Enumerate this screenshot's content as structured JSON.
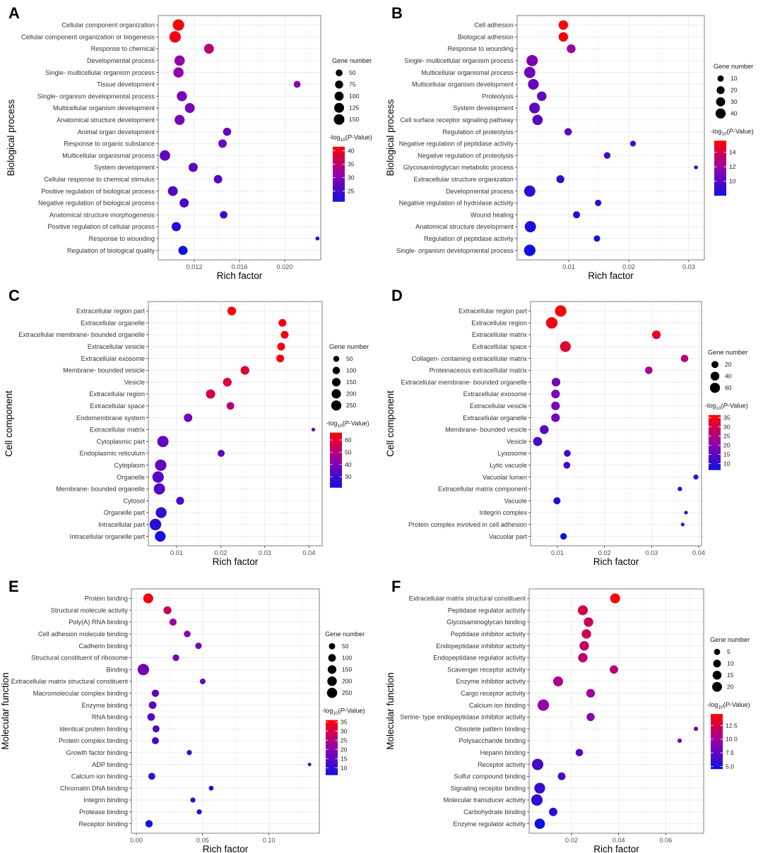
{
  "chart_data": [
    {
      "panel": "A",
      "type": "scatter",
      "subtype": "bubble",
      "xlabel": "Rich factor",
      "ylabel": "Biological process",
      "xlim": [
        0.00881,
        0.02319
      ],
      "xticks": [
        0.012,
        0.016,
        0.02
      ],
      "xtick_labels": [
        "0.012",
        "0.016",
        "0.020"
      ],
      "xminor": [
        0.01,
        0.014,
        0.018,
        0.022
      ],
      "grid": true,
      "size_legend": {
        "title": "Gene number",
        "values": [
          50,
          75,
          100,
          125,
          150
        ],
        "range": [
          25,
          155
        ]
      },
      "color_legend": {
        "title_prefix": "-log",
        "title_sub": "10",
        "title_suffix": "(P-Value)",
        "min": 21,
        "max": 41.5,
        "ticks": [
          25,
          30,
          35,
          40
        ]
      },
      "legend_position": "right",
      "categories": [
        "Cellular component organization",
        "Cellular component organization or biogenesis",
        "Response to chemical",
        "Developmental process",
        "Single- multicellular organism process",
        "Tissue development",
        "Single- organism developmental process",
        "Multicellular organism development",
        "Anatomical structure development",
        "Animal organ development",
        "Response to organic substance",
        "Multicellular organismal process",
        "System development",
        "Cellular response to chemical stimulus",
        "Positive regulation of biological process",
        "Negative regulation of biological process",
        "Anatomical structure morphogenesis",
        "Positive regulation of cellular process",
        "Response to wounding",
        "Regulation of biological quality"
      ],
      "rich_factor": [
        0.0106,
        0.0103,
        0.0133,
        0.0107,
        0.0106,
        0.0211,
        0.0109,
        0.0116,
        0.0107,
        0.0149,
        0.0145,
        0.0094,
        0.0119,
        0.0141,
        0.0101,
        0.0111,
        0.0146,
        0.0104,
        0.0229,
        0.011
      ],
      "gene_number": [
        150,
        150,
        110,
        120,
        120,
        55,
        115,
        110,
        115,
        75,
        80,
        125,
        95,
        80,
        110,
        95,
        65,
        95,
        28,
        95
      ],
      "neg_log10_p": [
        41,
        40,
        35,
        31,
        31,
        30,
        29,
        29,
        29,
        28,
        28,
        27,
        27,
        26,
        26,
        25,
        25,
        22,
        22,
        21
      ]
    },
    {
      "panel": "B",
      "type": "scatter",
      "subtype": "bubble",
      "xlabel": "Rich factor",
      "ylabel": "Biological process",
      "xlim": [
        0.0014,
        0.0326
      ],
      "xticks": [
        0.01,
        0.02,
        0.03
      ],
      "xtick_labels": [
        "0.01",
        "0.02",
        "0.03"
      ],
      "xminor": [
        0.005,
        0.015,
        0.025
      ],
      "grid": true,
      "size_legend": {
        "title": "Gene number",
        "values": [
          10,
          20,
          30,
          40
        ],
        "range": [
          4,
          48
        ]
      },
      "color_legend": {
        "title_prefix": "-log",
        "title_sub": "10",
        "title_suffix": "(P-Value)",
        "min": 8,
        "max": 15.6,
        "ticks": [
          10,
          12,
          14
        ]
      },
      "legend_position": "right",
      "categories": [
        "Cell adhesion",
        "Biological adhesion",
        "Response to wounding",
        "Single- multicellular organism process",
        "Multicellular organismal process",
        "Multicellular organism development",
        "Proteolysis",
        "System development",
        "Cell surface receptor signaling pathway",
        "Regulation of proteolysis",
        "Negative regulation of peptidase activity",
        "Negative regulation of proteolysis",
        "Glycosaminoglycan metabolic process",
        "Extracellular structure organization",
        "Developmental process",
        "Negative regulation of hydrolase activity",
        "Wound healing",
        "Anatomical structure development",
        "Regulation of peptidase activity",
        "Single- organism developmental process"
      ],
      "rich_factor": [
        0.0091,
        0.0091,
        0.0104,
        0.0039,
        0.0035,
        0.0041,
        0.0055,
        0.0043,
        0.0048,
        0.0099,
        0.0207,
        0.0164,
        0.0312,
        0.0086,
        0.0035,
        0.0149,
        0.0113,
        0.0036,
        0.0147,
        0.0035
      ],
      "gene_number": [
        30,
        30,
        25,
        45,
        45,
        40,
        30,
        40,
        37,
        17,
        10,
        13,
        5,
        20,
        45,
        12,
        15,
        45,
        12,
        47
      ],
      "neg_log10_p": [
        15.5,
        15.3,
        12,
        11,
        10.8,
        10.5,
        10.3,
        10.2,
        10,
        10,
        9.8,
        9.6,
        9.4,
        9.2,
        8.8,
        8.6,
        8.4,
        8.2,
        8.1,
        8
      ]
    },
    {
      "panel": "C",
      "type": "scatter",
      "subtype": "bubble",
      "xlabel": "Rich factor",
      "ylabel": "Cell component",
      "xlim": [
        0.0036,
        0.043
      ],
      "xticks": [
        0.01,
        0.02,
        0.03,
        0.04
      ],
      "xtick_labels": [
        "0.01",
        "0.02",
        "0.03",
        "0.04"
      ],
      "xminor": [
        0.005,
        0.015,
        0.025,
        0.035
      ],
      "grid": true,
      "size_legend": {
        "title": "Gene number",
        "values": [
          50,
          100,
          150,
          200,
          250
        ],
        "range": [
          20,
          300
        ]
      },
      "color_legend": {
        "title_prefix": "-log",
        "title_sub": "10",
        "title_suffix": "(P-Value)",
        "min": 21,
        "max": 66,
        "ticks": [
          30,
          40,
          50,
          60
        ]
      },
      "legend_position": "right",
      "categories": [
        "Extracellular region part",
        "Extracellular organelle",
        "Extracellular membrane- bounded organelle",
        "Extracellular vesicle",
        "Extracellular exosome",
        "Membrane- bounded vesicle",
        "Vesicle",
        "Extracellular region",
        "Extracellular space",
        "Endomembrane system",
        "Extracellular matrix",
        "Cytoplasmic part",
        "Endoplasmic reticulum",
        "Cytoplasm",
        "Organelle",
        "Membrane- bounded organelle",
        "Cytosol",
        "Organelle part",
        "Intracellular part",
        "Intracellular organelle part"
      ],
      "rich_factor": [
        0.0225,
        0.034,
        0.0345,
        0.0337,
        0.0335,
        0.0255,
        0.0215,
        0.0177,
        0.0222,
        0.0126,
        0.041,
        0.0069,
        0.0201,
        0.0064,
        0.0058,
        0.0061,
        0.0108,
        0.0065,
        0.0052,
        0.0063
      ],
      "gene_number": [
        150,
        115,
        115,
        115,
        115,
        150,
        150,
        170,
        110,
        140,
        25,
        280,
        90,
        290,
        290,
        280,
        120,
        260,
        300,
        250
      ],
      "neg_log10_p": [
        65,
        64,
        64,
        64,
        63,
        59,
        58,
        57,
        50,
        38,
        36,
        35,
        35,
        34,
        33,
        32,
        30,
        27,
        25,
        22
      ]
    },
    {
      "panel": "D",
      "type": "scatter",
      "subtype": "bubble",
      "xlabel": "Rich factor",
      "ylabel": "Cell component",
      "xlim": [
        0.0043,
        0.0406
      ],
      "xticks": [
        0.01,
        0.02,
        0.03,
        0.04
      ],
      "xtick_labels": [
        "0.01",
        "0.02",
        "0.03",
        "0.04"
      ],
      "xminor": [
        0.005,
        0.015,
        0.025,
        0.035
      ],
      "grid": true,
      "size_legend": {
        "title": "Gene number",
        "values": [
          20,
          40,
          60
        ],
        "range": [
          5,
          72
        ]
      },
      "color_legend": {
        "title_prefix": "-log",
        "title_sub": "13",
        "title_suffix": "(P-Value)",
        "min": 6.5,
        "max": 36.5,
        "ticks": [
          10,
          15,
          20,
          25,
          30,
          35
        ]
      },
      "legend_position": "right",
      "categories": [
        "Extracellular region part",
        "Extracellular region",
        "Extracellular matrix",
        "Extracellular space",
        "Collagen- containing extracellular matrix",
        "Proteinaceous extracellular matrix",
        "Extracellular membrane- bounded organelle",
        "Extracellular exosome",
        "Extracellular vesicle",
        "Extracellular organelle",
        "Membrane- bounded vesicle",
        "Vesicle",
        "Lysosome",
        "Lytic vacuole",
        "Vacuolar lumen",
        "Extracellular matrix component",
        "Vacuole",
        "Integrin complex",
        "Protein complex involved in cell adhesion",
        "Vacuolar part"
      ],
      "rich_factor": [
        0.0107,
        0.0088,
        0.031,
        0.0117,
        0.037,
        0.0294,
        0.0097,
        0.0096,
        0.0096,
        0.0096,
        0.0072,
        0.0058,
        0.0121,
        0.012,
        0.0394,
        0.036,
        0.0099,
        0.0373,
        0.0366,
        0.0113
      ],
      "gene_number": [
        70,
        70,
        35,
        60,
        25,
        25,
        35,
        35,
        35,
        35,
        38,
        40,
        20,
        20,
        10,
        8,
        22,
        6,
        6,
        18
      ],
      "neg_log10_p": [
        36,
        35,
        33,
        32,
        26,
        24,
        18,
        18,
        18,
        18,
        15,
        13,
        12,
        12,
        10,
        9,
        8,
        8,
        7.5,
        7
      ]
    },
    {
      "panel": "E",
      "type": "scatter",
      "subtype": "bubble",
      "xlabel": "Rich factor",
      "ylabel": "Molecular function",
      "xlim": [
        -0.0037,
        0.1381
      ],
      "xticks": [
        0.0,
        0.05,
        0.1
      ],
      "xtick_labels": [
        "0.00",
        "0.05",
        "0.10"
      ],
      "xminor": [
        0.025,
        0.075,
        0.125
      ],
      "grid": true,
      "size_legend": {
        "title": "Gene number",
        "values": [
          50,
          100,
          150,
          200,
          250
        ],
        "range": [
          12,
          290
        ]
      },
      "color_legend": {
        "title_prefix": "-log",
        "title_sub": "10",
        "title_suffix": "(P-Value)",
        "min": 6,
        "max": 36,
        "ticks": [
          10,
          15,
          20,
          25,
          30,
          35
        ]
      },
      "legend_position": "right",
      "categories": [
        "Protein binding",
        "Structural molecule activity",
        "Poly(A) RNA binding",
        "Cell adhesion molecule binding",
        "Cadherin binding",
        "Structural constituent of ribosome",
        "Binding",
        "Extracellular matrix structural constituent",
        "Macromolecular complex binding",
        "Enzyme binding",
        "RNA binding",
        "Identical protein binding",
        "Protein complex binding",
        "Growth factor binding",
        "ADP binding",
        "Calcium ion binding",
        "Chromatin DNA binding",
        "Integrin binding",
        "Protease binding",
        "Receptor binding"
      ],
      "rich_factor": [
        0.009,
        0.0235,
        0.0277,
        0.0384,
        0.0469,
        0.0299,
        0.0053,
        0.0501,
        0.0144,
        0.0123,
        0.0112,
        0.0149,
        0.0144,
        0.04,
        0.1307,
        0.0117,
        0.0565,
        0.0427,
        0.0475,
        0.0096
      ],
      "gene_number": [
        200,
        110,
        85,
        70,
        65,
        70,
        280,
        45,
        90,
        100,
        100,
        80,
        80,
        35,
        15,
        80,
        30,
        35,
        35,
        90
      ],
      "neg_log10_p": [
        35,
        28,
        22,
        20,
        18,
        18,
        17,
        16,
        15,
        14,
        13,
        13,
        12,
        11,
        11,
        10,
        9,
        9,
        8,
        7
      ]
    },
    {
      "panel": "F",
      "type": "scatter",
      "subtype": "bubble",
      "xlabel": "Rich factor",
      "ylabel": "Molecular function",
      "xlim": [
        0.002,
        0.0761
      ],
      "xticks": [
        0.02,
        0.04,
        0.06
      ],
      "xtick_labels": [
        "0.02",
        "0.04",
        "0.06"
      ],
      "xminor": [
        0.01,
        0.03,
        0.05,
        0.07
      ],
      "grid": true,
      "size_legend": {
        "title": "Gene number",
        "values": [
          5,
          10,
          15,
          20
        ],
        "range": [
          2,
          26
        ]
      },
      "color_legend": {
        "title_prefix": "-log",
        "title_sub": "10",
        "title_suffix": "(P-Value)",
        "min": 4.5,
        "max": 14.6,
        "ticks": [
          5.0,
          7.5,
          10.0,
          12.5
        ],
        "tick_labels": [
          "5.0",
          "7.5",
          "10.0",
          "12.5"
        ]
      },
      "legend_position": "right",
      "categories": [
        "Extracellular matrix structural constituent",
        "Peptidase regulator activity",
        "Glycosaminoglycan binding",
        "Peptidase inhibitor activity",
        "Endopeptidase inhibitor activity",
        "Endopeptidase regulator activity",
        "Scavenger receptor activity",
        "Enzyme inhibitor activity",
        "Cargo receptor activity",
        "Calcium ion binding",
        "Serine- type endopeptidase inhibitor activity",
        "Obsolete pattern binding",
        "Polysaccharide binding",
        "Heparin binding",
        "Receptor activity",
        "Sulfur compound binding",
        "Signaling receptor binding",
        "Molecular transducer activity",
        "Carbohydrate binding",
        "Enzyme regulator activity"
      ],
      "rich_factor": [
        0.0385,
        0.0248,
        0.0272,
        0.0263,
        0.0254,
        0.0248,
        0.038,
        0.0143,
        0.0281,
        0.008,
        0.0281,
        0.0728,
        0.0659,
        0.0233,
        0.0056,
        0.0158,
        0.0065,
        0.0053,
        0.0122,
        0.0065
      ],
      "gene_number": [
        18,
        18,
        16,
        16,
        16,
        16,
        12,
        18,
        13,
        25,
        11,
        3,
        3,
        9,
        25,
        10,
        22,
        25,
        12,
        20
      ],
      "neg_log10_p": [
        14.5,
        12.5,
        12,
        12,
        11.5,
        11.5,
        11,
        10.5,
        10,
        9.5,
        9,
        8,
        8,
        7,
        6.5,
        6.5,
        6,
        5.8,
        5.5,
        4.5
      ]
    }
  ]
}
